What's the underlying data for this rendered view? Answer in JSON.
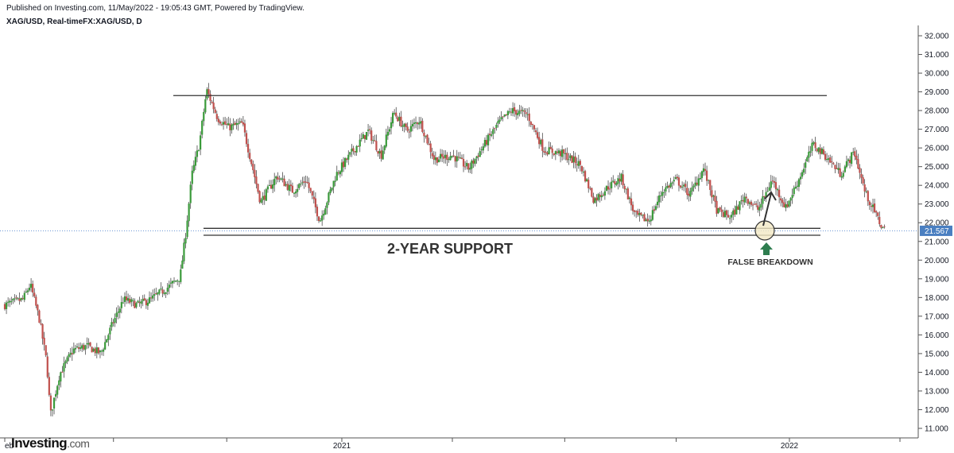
{
  "header": {
    "published": "Published on Investing.com, 11/May/2022 - 19:05:43 GMT, Powered by TradingView.",
    "symbol": "XAG/USD, Real-timeFX:XAG/USD, D"
  },
  "logo": {
    "brand": "Investing",
    "suffix": ".com"
  },
  "chart_data": {
    "type": "candlestick",
    "title": "",
    "xlabel": "",
    "ylabel": "",
    "ylim": [
      11.0,
      32.0
    ],
    "y_ticks": [
      "32.000",
      "31.000",
      "30.000",
      "29.000",
      "28.000",
      "27.000",
      "26.000",
      "25.000",
      "24.000",
      "23.000",
      "22.000",
      "21.000",
      "20.000",
      "19.000",
      "18.000",
      "17.000",
      "16.000",
      "15.000",
      "14.000",
      "13.000",
      "12.000",
      "11.000"
    ],
    "x_ticks": [
      {
        "label": "eb",
        "t": 0.0
      },
      {
        "label": "",
        "t": 0.119
      },
      {
        "label": "",
        "t": 0.243
      },
      {
        "label": "2021",
        "t": 0.369
      },
      {
        "label": "",
        "t": 0.49
      },
      {
        "label": "",
        "t": 0.613
      },
      {
        "label": "",
        "t": 0.735
      },
      {
        "label": "2022",
        "t": 0.859
      },
      {
        "label": "",
        "t": 0.98
      },
      {
        "label": "",
        "t": 1.1
      }
    ],
    "path": [
      [
        0.0,
        17.6
      ],
      [
        0.02,
        17.9
      ],
      [
        0.028,
        18.7
      ],
      [
        0.038,
        16.8
      ],
      [
        0.046,
        14.5
      ],
      [
        0.05,
        11.7
      ],
      [
        0.06,
        13.9
      ],
      [
        0.075,
        15.2
      ],
      [
        0.09,
        15.4
      ],
      [
        0.105,
        15.0
      ],
      [
        0.118,
        16.6
      ],
      [
        0.13,
        17.9
      ],
      [
        0.145,
        17.6
      ],
      [
        0.16,
        17.9
      ],
      [
        0.18,
        18.6
      ],
      [
        0.192,
        19.1
      ],
      [
        0.198,
        21.4
      ],
      [
        0.205,
        24.6
      ],
      [
        0.213,
        26.2
      ],
      [
        0.221,
        29.1
      ],
      [
        0.233,
        27.6
      ],
      [
        0.245,
        27.1
      ],
      [
        0.26,
        27.3
      ],
      [
        0.272,
        24.8
      ],
      [
        0.28,
        23.1
      ],
      [
        0.298,
        24.5
      ],
      [
        0.315,
        23.7
      ],
      [
        0.33,
        24.3
      ],
      [
        0.345,
        22.1
      ],
      [
        0.363,
        24.6
      ],
      [
        0.382,
        25.9
      ],
      [
        0.398,
        26.9
      ],
      [
        0.412,
        25.6
      ],
      [
        0.426,
        27.9
      ],
      [
        0.44,
        26.9
      ],
      [
        0.454,
        27.5
      ],
      [
        0.47,
        25.4
      ],
      [
        0.49,
        25.6
      ],
      [
        0.508,
        24.9
      ],
      [
        0.524,
        26.1
      ],
      [
        0.54,
        27.3
      ],
      [
        0.555,
        28.0
      ],
      [
        0.572,
        27.8
      ],
      [
        0.59,
        25.9
      ],
      [
        0.61,
        25.7
      ],
      [
        0.63,
        25.1
      ],
      [
        0.645,
        23.2
      ],
      [
        0.66,
        23.9
      ],
      [
        0.675,
        24.4
      ],
      [
        0.69,
        22.4
      ],
      [
        0.705,
        22.1
      ],
      [
        0.72,
        23.7
      ],
      [
        0.735,
        24.3
      ],
      [
        0.75,
        23.5
      ],
      [
        0.765,
        24.9
      ],
      [
        0.78,
        22.6
      ],
      [
        0.795,
        22.3
      ],
      [
        0.81,
        23.4
      ],
      [
        0.825,
        22.7
      ],
      [
        0.84,
        24.3
      ],
      [
        0.855,
        22.8
      ],
      [
        0.87,
        24.4
      ],
      [
        0.885,
        26.2
      ],
      [
        0.9,
        25.5
      ],
      [
        0.915,
        24.6
      ],
      [
        0.93,
        25.8
      ],
      [
        0.942,
        23.6
      ],
      [
        0.952,
        22.6
      ],
      [
        0.96,
        21.8
      ],
      [
        0.964,
        21.567
      ]
    ],
    "current_price": "21.567",
    "resistance_level": 28.8,
    "support_band": [
      21.5,
      21.7
    ],
    "annotations": {
      "support_label": "2-YEAR SUPPORT",
      "breakdown_label": "FALSE BREAKDOWN"
    },
    "colors": {
      "up": "#3a9a3a",
      "down": "#c0504d",
      "price_line": "#5b8bd0",
      "price_tag": "#4a7fc1",
      "lines": "#333333",
      "arrow_up": "#2e7d4f",
      "highlight": "#f3e9c4"
    },
    "grid": false
  }
}
